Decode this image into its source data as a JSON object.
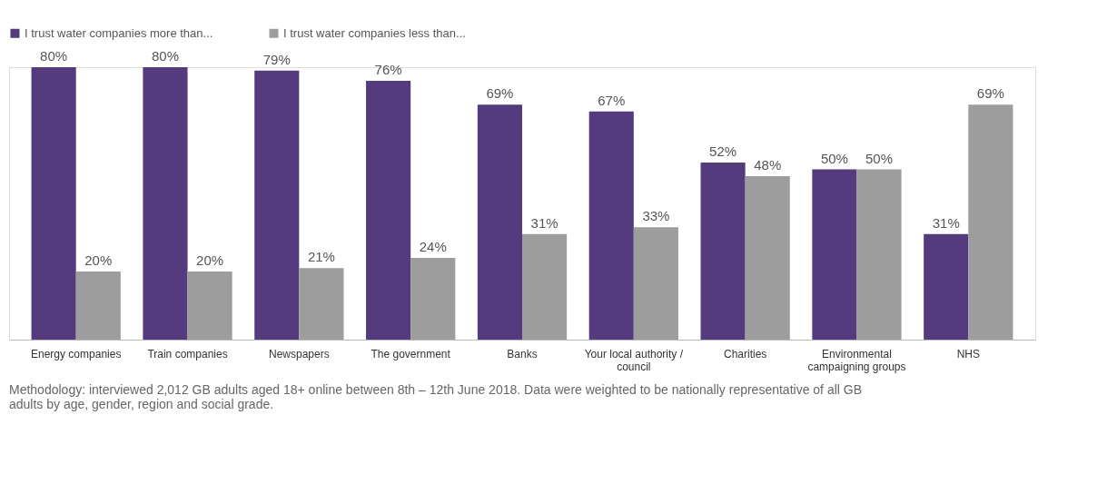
{
  "chart_data": {
    "type": "bar",
    "categories": [
      "Energy companies",
      "Train companies",
      "Newspapers",
      "The government",
      "Banks",
      "Your local authority / council",
      "Charities",
      "Environmental campaigning groups",
      "NHS"
    ],
    "series": [
      {
        "name": "I trust water companies more than...",
        "color": "#533b7d",
        "values": [
          80,
          80,
          79,
          76,
          69,
          67,
          52,
          50,
          31
        ],
        "value_labels": [
          "80%",
          "80%",
          "79%",
          "76%",
          "69%",
          "67%",
          "52%",
          "50%",
          "31%"
        ]
      },
      {
        "name": "I trust water companies less than...",
        "color": "#9d9d9d",
        "values": [
          20,
          20,
          21,
          24,
          31,
          33,
          48,
          50,
          69
        ],
        "value_labels": [
          "20%",
          "20%",
          "21%",
          "24%",
          "31%",
          "33%",
          "48%",
          "50%",
          "69%"
        ]
      }
    ],
    "legend": "top",
    "grid": false,
    "annotations": [
      "Methodology: interviewed 2,012 GB adults aged 18+ online between 8th – 12th June 2018. Data were weighted to be nationally representative of all GB adults by age, gender, region and social grade."
    ]
  }
}
